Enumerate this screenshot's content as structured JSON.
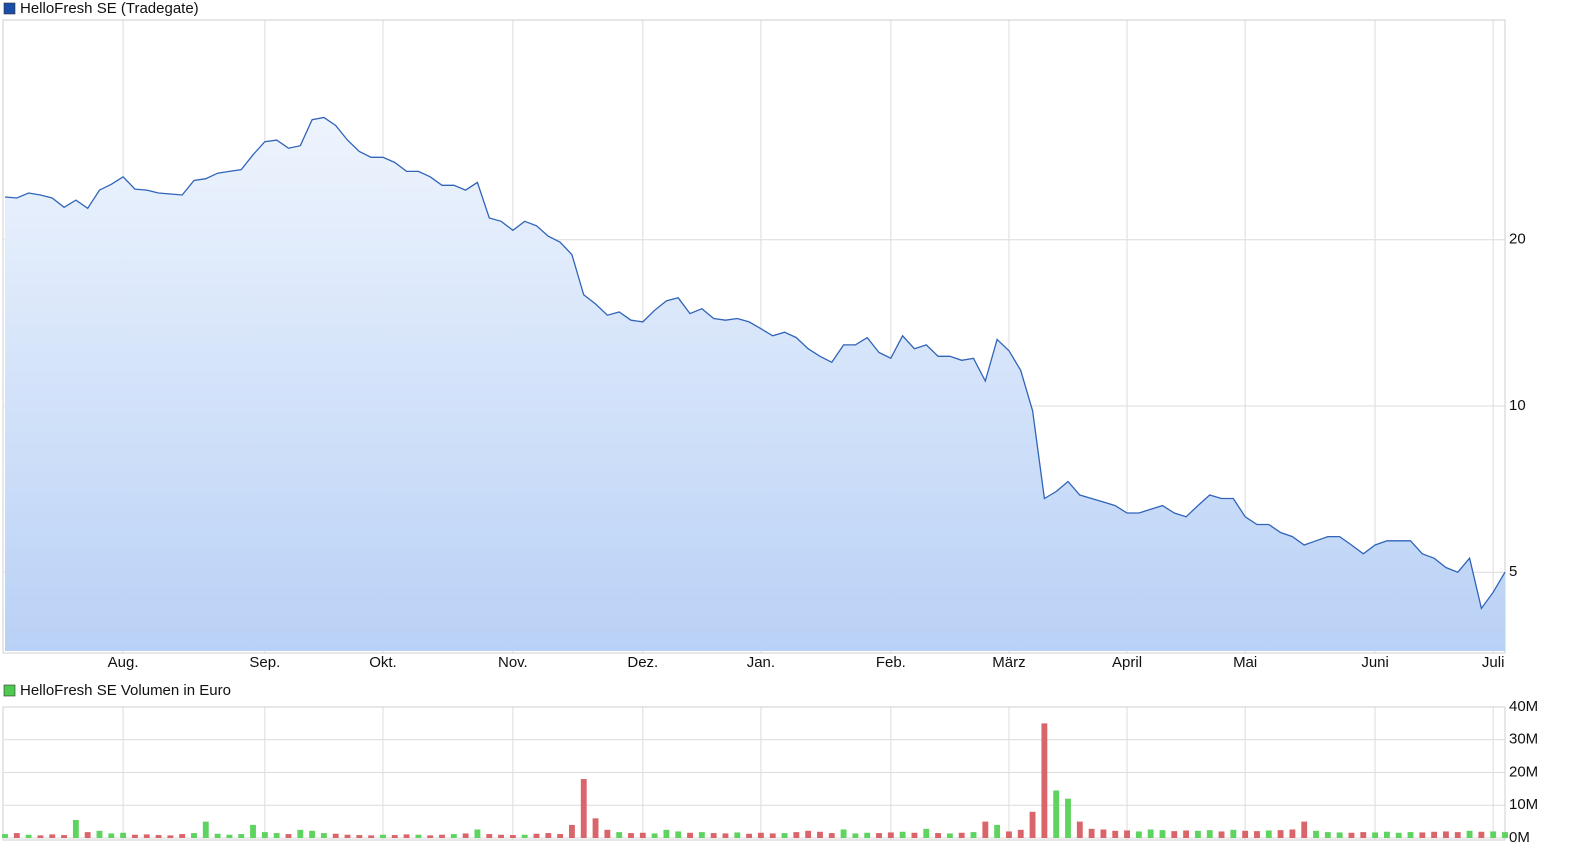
{
  "chart_data": [
    {
      "type": "area",
      "title": "HelloFresh SE (Tradegate)",
      "color": "#2f64b9",
      "legend_color": "#1a4ea8",
      "fill_top": "#eef4fd",
      "fill_bottom": "#b9d1f6",
      "log": true,
      "grid": true,
      "ylim": [
        3.6,
        50
      ],
      "yticks": [
        5,
        10,
        20
      ],
      "categories": [
        null,
        null,
        null,
        null,
        null,
        null,
        null,
        null,
        null,
        null,
        "Aug.",
        null,
        null,
        null,
        null,
        null,
        null,
        null,
        null,
        null,
        null,
        null,
        "Sep.",
        null,
        null,
        null,
        null,
        null,
        null,
        null,
        null,
        null,
        "Okt.",
        null,
        null,
        null,
        null,
        null,
        null,
        null,
        null,
        null,
        null,
        "Nov.",
        null,
        null,
        null,
        null,
        null,
        null,
        null,
        null,
        null,
        null,
        "Dez.",
        null,
        null,
        null,
        null,
        null,
        null,
        null,
        null,
        null,
        "Jan.",
        null,
        null,
        null,
        null,
        null,
        null,
        null,
        null,
        null,
        null,
        "Feb.",
        null,
        null,
        null,
        null,
        null,
        null,
        null,
        null,
        null,
        "März",
        null,
        null,
        null,
        null,
        null,
        null,
        null,
        null,
        null,
        "April",
        null,
        null,
        null,
        null,
        null,
        null,
        null,
        null,
        null,
        "Mai",
        null,
        null,
        null,
        null,
        null,
        null,
        null,
        null,
        null,
        null,
        "Juni",
        null,
        null,
        null,
        null,
        null,
        null,
        null,
        null,
        null,
        "Juli",
        null
      ],
      "values": [
        23.9,
        23.8,
        24.3,
        24.1,
        23.8,
        22.9,
        23.6,
        22.8,
        24.6,
        25.2,
        26.0,
        24.7,
        24.6,
        24.3,
        24.2,
        24.1,
        25.6,
        25.8,
        26.4,
        26.6,
        26.8,
        28.5,
        30.1,
        30.3,
        29.3,
        29.6,
        33.0,
        33.3,
        32.2,
        30.3,
        28.9,
        28.2,
        28.2,
        27.6,
        26.6,
        26.6,
        26.0,
        25.1,
        25.1,
        24.6,
        25.4,
        21.9,
        21.6,
        20.8,
        21.6,
        21.2,
        20.3,
        19.8,
        18.8,
        15.9,
        15.3,
        14.6,
        14.8,
        14.3,
        14.2,
        14.9,
        15.5,
        15.7,
        14.7,
        15.0,
        14.4,
        14.3,
        14.4,
        14.2,
        13.8,
        13.4,
        13.6,
        13.3,
        12.7,
        12.3,
        12.0,
        12.9,
        12.9,
        13.3,
        12.5,
        12.2,
        13.4,
        12.7,
        12.9,
        12.3,
        12.3,
        12.1,
        12.2,
        11.1,
        13.2,
        12.6,
        11.6,
        9.8,
        6.8,
        7.0,
        7.3,
        6.9,
        6.8,
        6.7,
        6.6,
        6.4,
        6.4,
        6.5,
        6.6,
        6.4,
        6.3,
        6.6,
        6.9,
        6.8,
        6.8,
        6.3,
        6.1,
        6.1,
        5.9,
        5.8,
        5.6,
        5.7,
        5.8,
        5.8,
        5.6,
        5.4,
        5.6,
        5.7,
        5.7,
        5.7,
        5.4,
        5.3,
        5.1,
        5.0,
        5.3,
        4.3,
        4.6,
        5.0
      ]
    },
    {
      "type": "bar",
      "title": "HelloFresh SE Volumen in Euro",
      "legend_color": "#4fc94f",
      "up_color": "#5fd35f",
      "down_color": "#d9646a",
      "grid": true,
      "ylim": [
        0,
        40
      ],
      "yticks": [
        {
          "value": 0,
          "label": "0M"
        },
        {
          "value": 10,
          "label": "10M"
        },
        {
          "value": 20,
          "label": "20M"
        },
        {
          "value": 30,
          "label": "30M"
        },
        {
          "value": 40,
          "label": "40M"
        }
      ],
      "values": [
        1.2,
        1.5,
        1.0,
        0.8,
        1.1,
        0.9,
        5.5,
        1.8,
        2.2,
        1.4,
        1.6,
        1.0,
        1.1,
        0.9,
        0.8,
        1.2,
        1.5,
        5.0,
        1.3,
        1.0,
        1.2,
        4.0,
        1.8,
        1.5,
        1.2,
        2.5,
        2.2,
        1.5,
        1.3,
        1.0,
        0.9,
        0.8,
        1.0,
        0.9,
        1.1,
        1.0,
        0.8,
        1.0,
        1.2,
        1.4,
        2.6,
        1.2,
        1.0,
        0.9,
        1.0,
        1.3,
        1.5,
        1.2,
        4.0,
        18,
        6.0,
        2.5,
        1.8,
        1.5,
        1.6,
        1.4,
        2.5,
        2.0,
        1.6,
        1.8,
        1.5,
        1.4,
        1.7,
        1.3,
        1.6,
        1.4,
        1.5,
        1.8,
        2.2,
        1.9,
        1.5,
        2.6,
        1.4,
        1.6,
        1.5,
        1.7,
        1.9,
        1.6,
        2.8,
        1.5,
        1.4,
        1.6,
        1.8,
        5.0,
        4.0,
        2.0,
        2.5,
        8.0,
        35,
        14.5,
        12,
        5.0,
        2.8,
        2.6,
        2.2,
        2.3,
        2.0,
        2.6,
        2.4,
        2.1,
        2.3,
        2.2,
        2.4,
        2.0,
        2.5,
        2.2,
        2.1,
        2.3,
        2.4,
        2.6,
        5.0,
        2.2,
        1.8,
        1.7,
        1.6,
        1.8,
        1.7,
        1.9,
        1.6,
        1.8,
        1.7,
        1.9,
        2.0,
        1.8,
        2.2,
        1.9,
        2.0,
        1.8
      ]
    }
  ]
}
